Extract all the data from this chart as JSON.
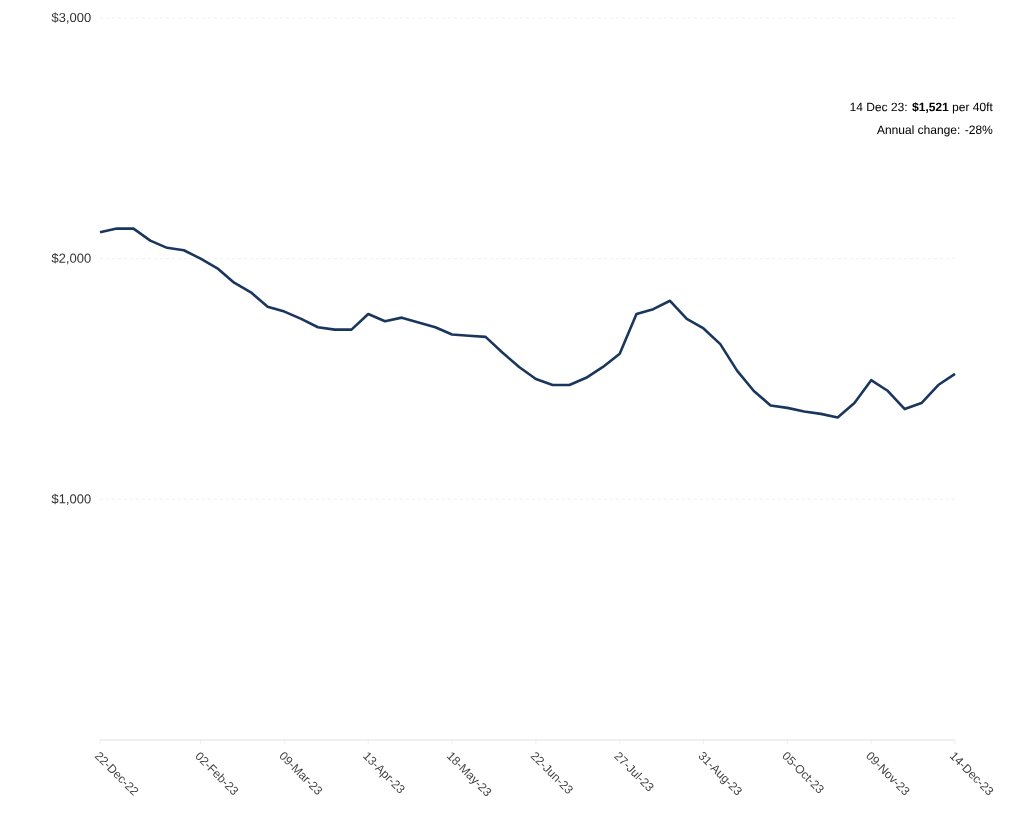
{
  "chart_data": {
    "type": "line",
    "x": [
      "2022-12-22",
      "2022-12-29",
      "2023-01-05",
      "2023-01-12",
      "2023-01-19",
      "2023-01-26",
      "2023-02-02",
      "2023-02-09",
      "2023-02-16",
      "2023-02-23",
      "2023-03-02",
      "2023-03-09",
      "2023-03-16",
      "2023-03-23",
      "2023-03-30",
      "2023-04-06",
      "2023-04-13",
      "2023-04-20",
      "2023-04-27",
      "2023-05-04",
      "2023-05-11",
      "2023-05-18",
      "2023-05-25",
      "2023-06-01",
      "2023-06-08",
      "2023-06-15",
      "2023-06-22",
      "2023-06-29",
      "2023-07-06",
      "2023-07-13",
      "2023-07-20",
      "2023-07-27",
      "2023-08-03",
      "2023-08-10",
      "2023-08-17",
      "2023-08-24",
      "2023-08-31",
      "2023-09-07",
      "2023-09-14",
      "2023-09-21",
      "2023-09-28",
      "2023-10-05",
      "2023-10-12",
      "2023-10-19",
      "2023-10-26",
      "2023-11-02",
      "2023-11-09",
      "2023-11-16",
      "2023-11-23",
      "2023-11-30",
      "2023-12-07",
      "2023-12-14"
    ],
    "values": [
      2110,
      2125,
      2125,
      2075,
      2045,
      2035,
      2000,
      1960,
      1900,
      1860,
      1800,
      1780,
      1750,
      1715,
      1705,
      1705,
      1770,
      1740,
      1755,
      1735,
      1715,
      1685,
      1680,
      1675,
      1610,
      1550,
      1500,
      1475,
      1475,
      1505,
      1550,
      1605,
      1770,
      1790,
      1825,
      1750,
      1710,
      1645,
      1535,
      1450,
      1390,
      1380,
      1365,
      1355,
      1340,
      1400,
      1495,
      1450,
      1375,
      1400,
      1475,
      1521
    ],
    "color": "#1b365d",
    "line_style": "solid",
    "xlim": [
      "2022-12-22",
      "2023-12-14"
    ],
    "xticks": [
      {
        "value": "2022-12-22",
        "label": "22-Dec-22"
      },
      {
        "value": "2023-02-02",
        "label": "02-Feb-23"
      },
      {
        "value": "2023-03-09",
        "label": "09-Mar-23"
      },
      {
        "value": "2023-04-13",
        "label": "13-Apr-23"
      },
      {
        "value": "2023-05-18",
        "label": "18-May-23"
      },
      {
        "value": "2023-06-22",
        "label": "22-Jun-23"
      },
      {
        "value": "2023-07-27",
        "label": "27-Jul-23"
      },
      {
        "value": "2023-08-31",
        "label": "31-Aug-23"
      },
      {
        "value": "2023-10-05",
        "label": "05-Oct-23"
      },
      {
        "value": "2023-11-09",
        "label": "09-Nov-23"
      },
      {
        "value": "2023-12-14",
        "label": "14-Dec-23"
      }
    ],
    "ylim": [
      0,
      3000
    ],
    "yticks": [
      {
        "value": 1000,
        "label": "$1,000"
      },
      {
        "value": 2000,
        "label": "$2,000"
      },
      {
        "value": 3000,
        "label": "$3,000"
      }
    ],
    "grid": "y",
    "annotations": [
      "14 Dec 23: **$1,521** per 40ft",
      "Annual change: -28%"
    ]
  }
}
